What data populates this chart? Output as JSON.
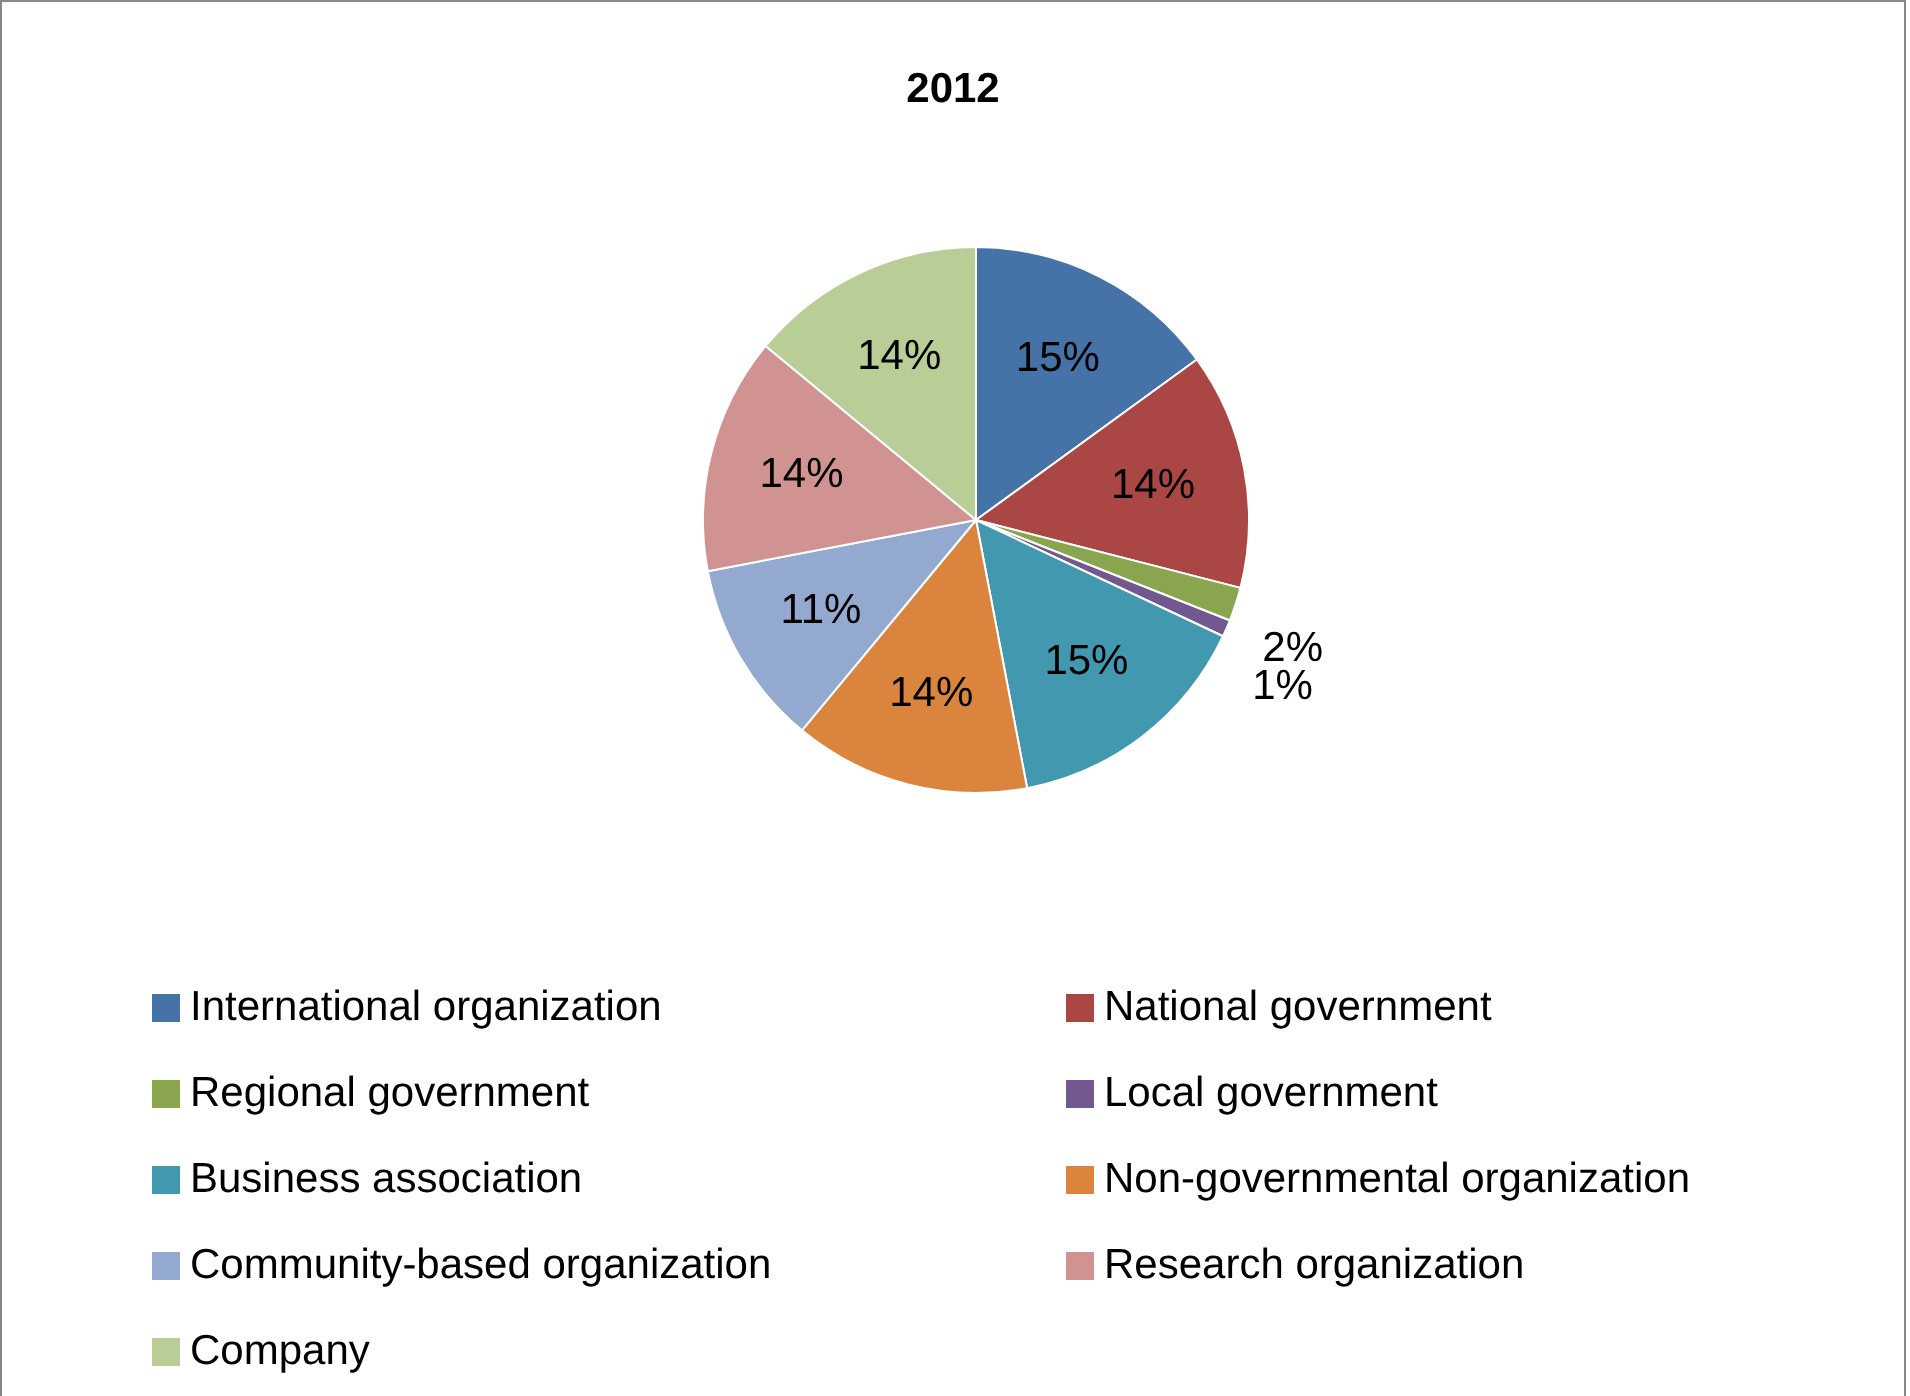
{
  "chart_data": {
    "type": "pie",
    "title": "2012",
    "categories": [
      "International organization",
      "National government",
      "Regional government",
      "Local government",
      "Business association",
      "Non-governmental organization",
      "Community-based organization",
      "Research organization",
      "Company"
    ],
    "values": [
      15,
      14,
      2,
      1,
      15,
      14,
      11,
      14,
      14
    ],
    "value_labels": [
      "15%",
      "14%",
      "2%",
      "1%",
      "15%",
      "14%",
      "11%",
      "14%",
      "14%"
    ],
    "colors": [
      "#4572a7",
      "#aa4643",
      "#89a54e",
      "#71588f",
      "#4198af",
      "#db843d",
      "#93a9cf",
      "#d19392",
      "#b9cd96"
    ],
    "legend": "bottom"
  }
}
